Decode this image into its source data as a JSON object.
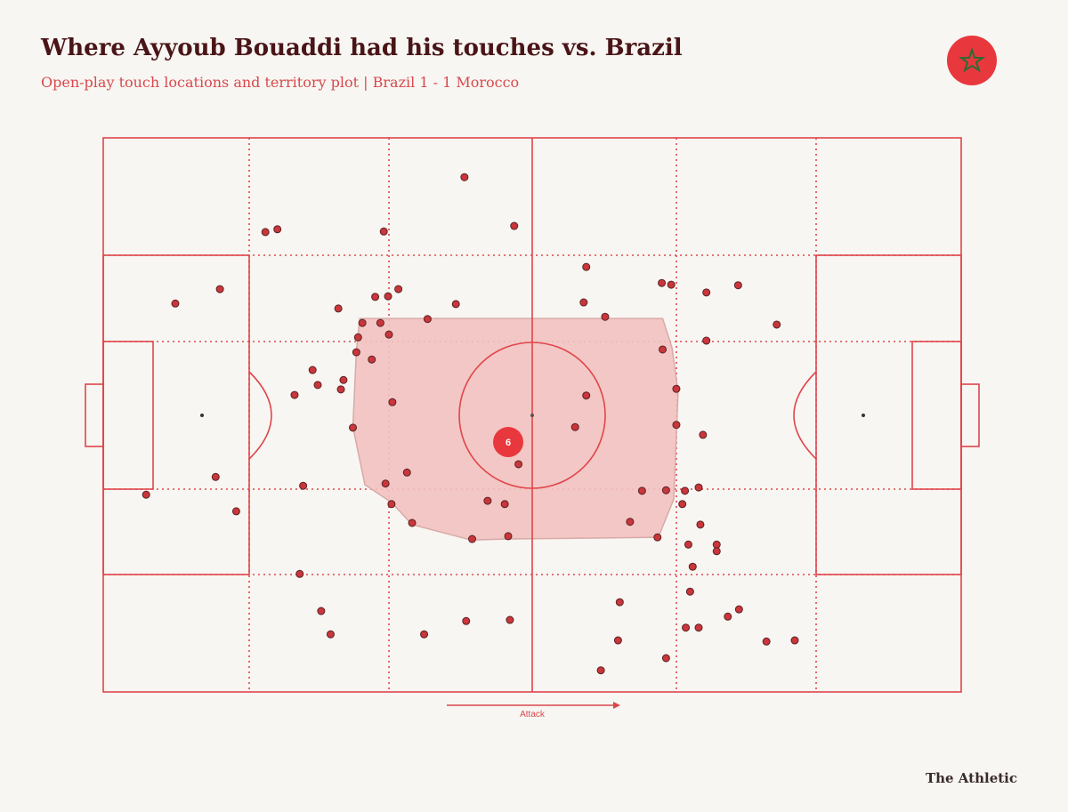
{
  "chart_data": {
    "type": "scatter",
    "title": "Where Ayyoub Bouaddi had his touches vs. Brazil",
    "subtitle": "Open-play touch locations and territory plot | Brazil 1 - 1 Morocco",
    "annotation": "Attack",
    "source": "The Athletic",
    "xlim": [
      0,
      100
    ],
    "ylim": [
      0,
      100
    ],
    "series": [
      {
        "name": "Touches",
        "color": "#c9363b",
        "x": [
          42.1,
          47.9,
          18.9,
          20.3,
          32.7,
          56.3,
          13.6,
          8.4,
          27.4,
          31.7,
          33.2,
          34.4,
          41.1,
          56.0,
          65.1,
          66.2,
          70.3,
          74.0,
          78.5,
          37.8,
          58.5,
          30.2,
          32.3,
          29.7,
          33.3,
          65.2,
          70.3,
          31.3,
          29.5,
          24.4,
          25.0,
          28.0,
          27.7,
          22.3,
          33.7,
          56.3,
          66.8,
          29.1,
          55.0,
          69.9,
          66.8,
          35.4,
          48.4,
          13.1,
          23.3,
          5.0,
          15.5,
          32.9,
          33.6,
          44.8,
          46.8,
          62.8,
          65.6,
          67.8,
          69.4,
          67.5,
          36.0,
          61.4,
          69.6,
          43.0,
          47.2,
          64.6,
          68.2,
          71.5,
          71.5,
          68.7,
          22.9,
          68.4,
          60.2,
          25.4,
          74.1,
          72.8,
          42.3,
          47.4,
          26.5,
          37.4,
          67.9,
          69.4,
          60.0,
          77.3,
          80.6,
          65.6,
          58.0
        ],
        "y": [
          7.1,
          15.9,
          17.0,
          16.5,
          16.9,
          23.3,
          27.3,
          29.9,
          30.8,
          28.7,
          28.6,
          27.3,
          30.0,
          29.7,
          26.2,
          26.5,
          27.9,
          26.6,
          33.7,
          32.7,
          32.3,
          33.4,
          33.4,
          36.0,
          35.5,
          38.2,
          36.6,
          40.0,
          38.7,
          41.9,
          44.6,
          43.7,
          45.4,
          46.4,
          47.7,
          46.5,
          45.3,
          52.3,
          52.2,
          53.6,
          51.8,
          60.4,
          58.9,
          61.2,
          62.8,
          64.4,
          67.4,
          62.4,
          66.1,
          65.5,
          66.1,
          63.7,
          63.6,
          63.7,
          63.1,
          66.1,
          69.5,
          69.3,
          69.8,
          72.4,
          71.9,
          72.1,
          73.4,
          73.4,
          74.6,
          77.4,
          78.7,
          81.9,
          83.8,
          85.4,
          85.1,
          86.4,
          87.2,
          87.0,
          89.6,
          89.6,
          88.4,
          88.4,
          90.7,
          90.9,
          90.7,
          93.9,
          96.1
        ]
      }
    ],
    "territory": {
      "color": "#f2c2c0",
      "x": [
        29.9,
        65.2,
        66.3,
        67.0,
        66.5,
        64.7,
        47.2,
        42.9,
        36.0,
        33.6,
        30.5,
        29.1,
        29.5
      ],
      "y": [
        32.6,
        32.6,
        37.9,
        45.9,
        65.2,
        72.1,
        72.4,
        72.6,
        69.8,
        65.8,
        62.6,
        52.2,
        38.5
      ]
    },
    "average_position": {
      "x": 47.2,
      "y": 54.9,
      "label": "6",
      "color": "#e8383d"
    }
  }
}
